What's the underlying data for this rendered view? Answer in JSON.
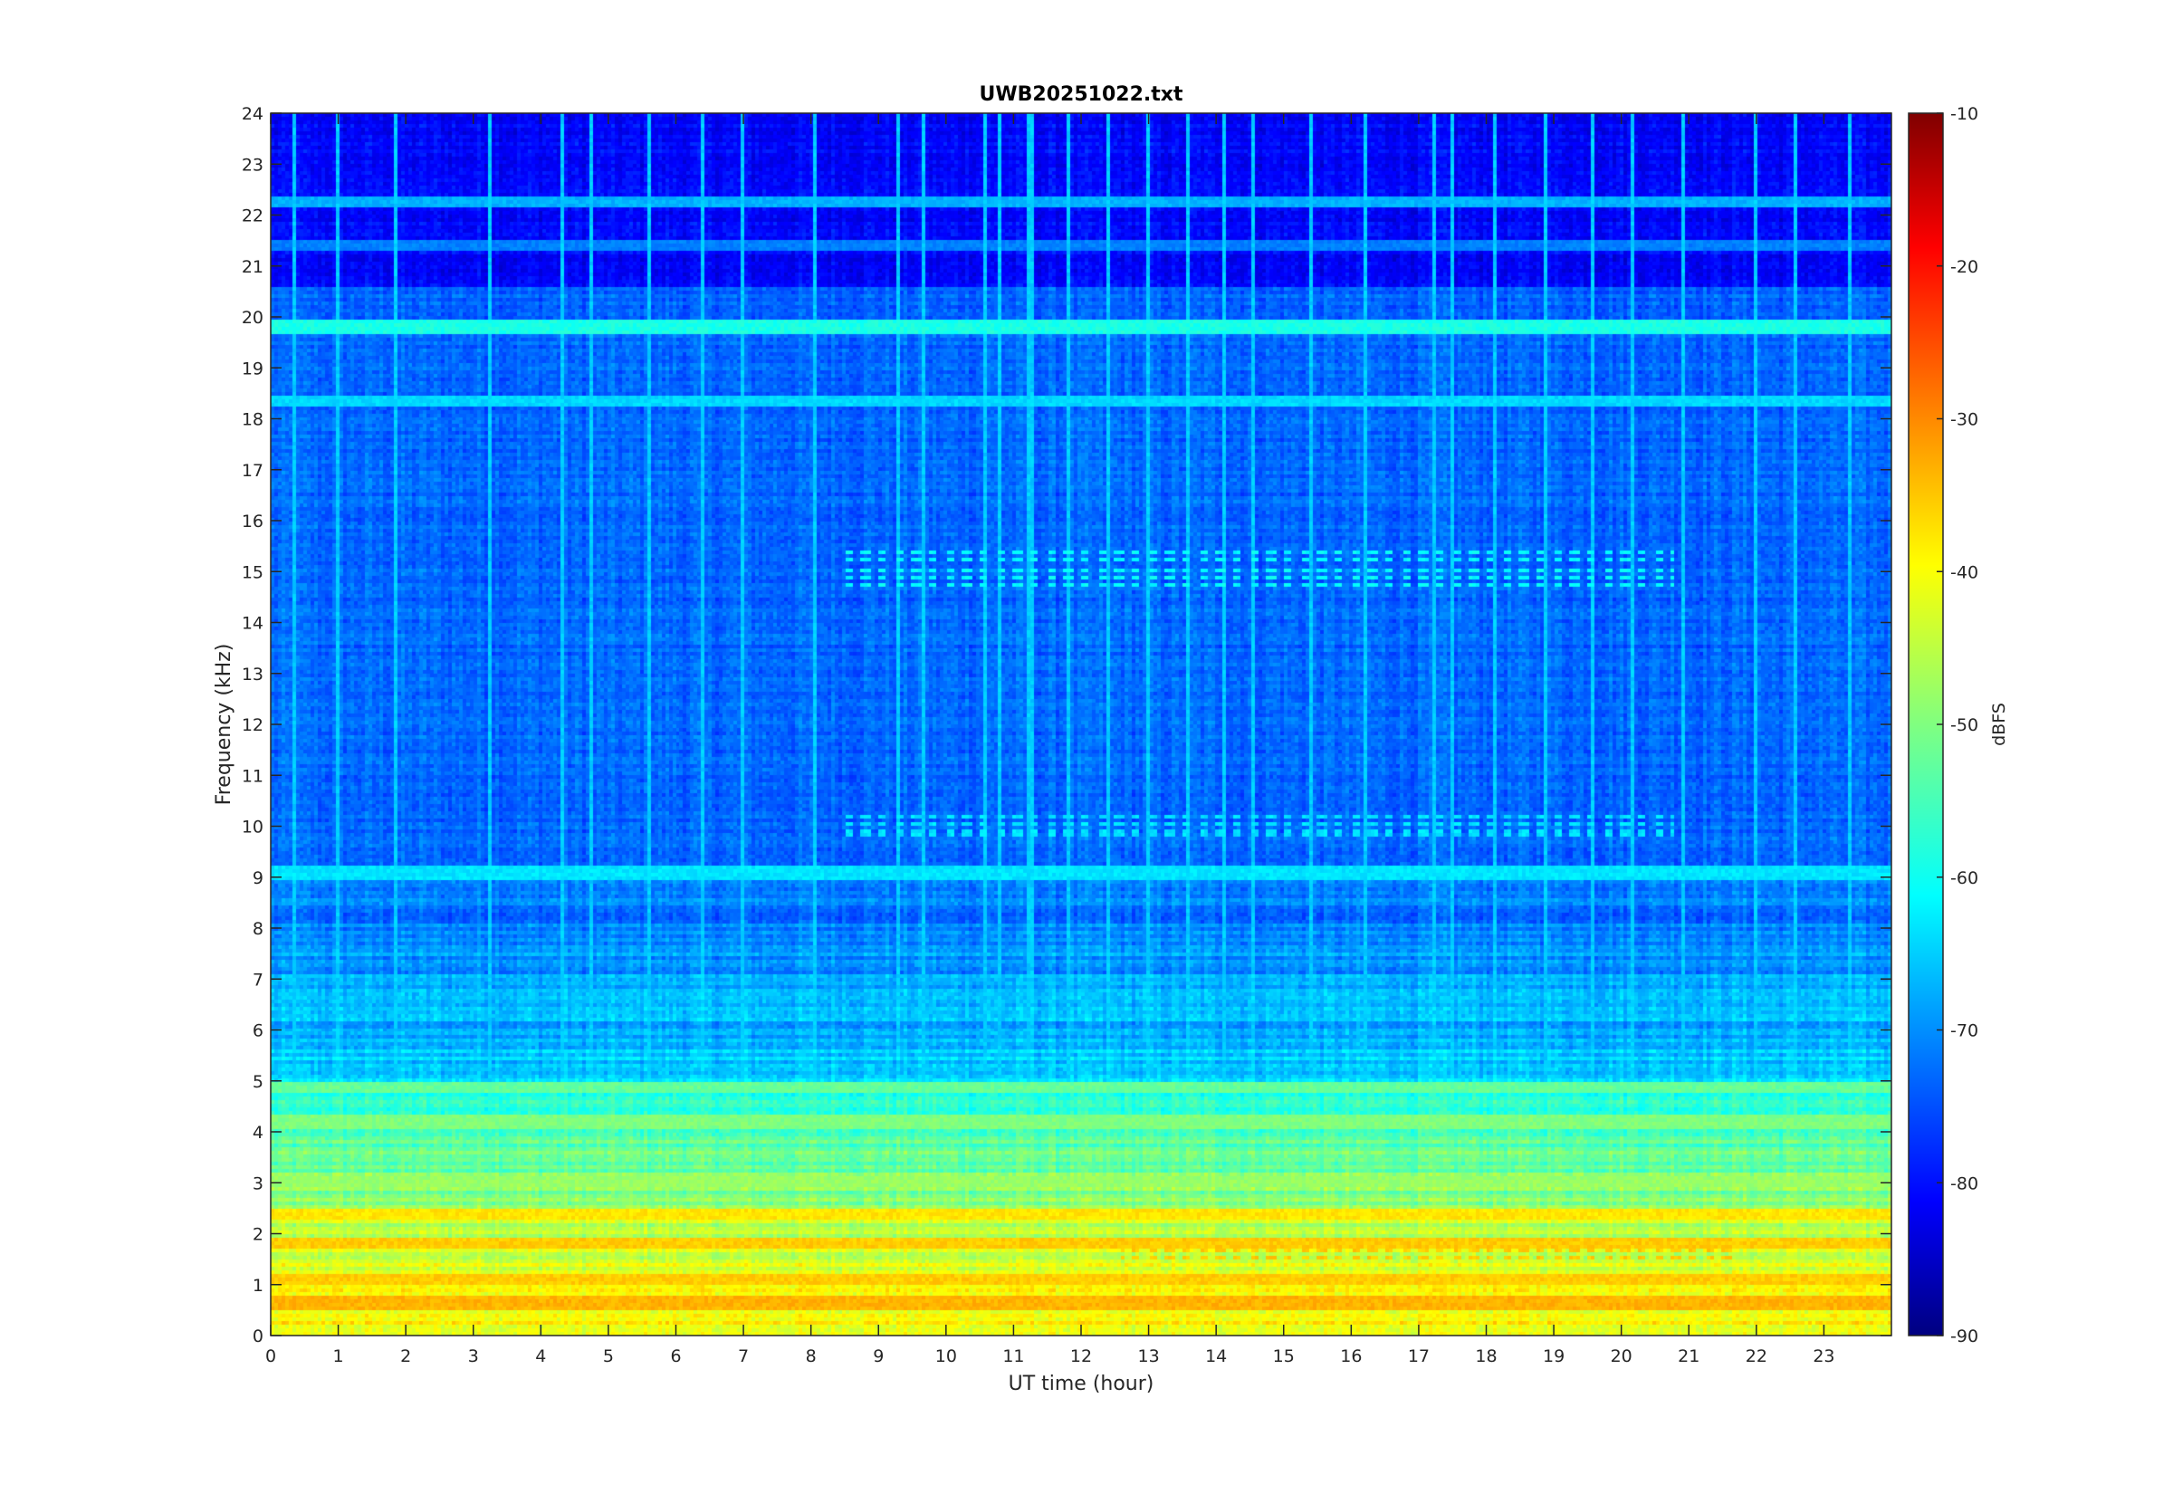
{
  "chart_data": {
    "type": "heatmap",
    "title": "UWB20251022.txt",
    "xlabel": "UT time (hour)",
    "ylabel": "Frequency (kHz)",
    "xlim": [
      0,
      24
    ],
    "ylim": [
      0,
      24
    ],
    "x_ticks": [
      "0",
      "1",
      "2",
      "3",
      "4",
      "5",
      "6",
      "7",
      "8",
      "9",
      "10",
      "11",
      "12",
      "13",
      "14",
      "15",
      "16",
      "17",
      "18",
      "19",
      "20",
      "21",
      "22",
      "23"
    ],
    "y_ticks": [
      "0",
      "1",
      "2",
      "3",
      "4",
      "5",
      "6",
      "7",
      "8",
      "9",
      "10",
      "11",
      "12",
      "13",
      "14",
      "15",
      "16",
      "17",
      "18",
      "19",
      "20",
      "21",
      "22",
      "23",
      "24"
    ],
    "colorbar": {
      "label": "dBFS",
      "range": [
        -90,
        -10
      ],
      "ticks": [
        "-90",
        "-80",
        "-70",
        "-60",
        "-50",
        "-40",
        "-30",
        "-20",
        "-10"
      ],
      "colormap": "jet"
    },
    "features": {
      "background_level_dbfs": -72,
      "upper_band_level_dbfs": -80,
      "horizontal_lines_khz": [
        {
          "freq": 19.8,
          "level": -58
        },
        {
          "freq": 18.35,
          "level": -63
        },
        {
          "freq": 22.25,
          "level": -66
        },
        {
          "freq": 21.4,
          "level": -70
        },
        {
          "freq": 9.1,
          "level": -62
        },
        {
          "freq": 4.85,
          "level": -52
        },
        {
          "freq": 4.2,
          "level": -50
        },
        {
          "freq": 3.0,
          "level": -48
        },
        {
          "freq": 2.4,
          "level": -38
        },
        {
          "freq": 1.8,
          "level": -36
        },
        {
          "freq": 1.1,
          "level": -36
        },
        {
          "freq": 0.65,
          "level": -34
        }
      ],
      "vertical_lines_hour": [
        0.35,
        1.0,
        1.85,
        3.25,
        4.3,
        4.75,
        5.6,
        6.4,
        7.0,
        8.05,
        9.3,
        9.65,
        10.6,
        10.8,
        11.25,
        11.8,
        12.4,
        13.0,
        13.6,
        14.1,
        14.55,
        15.4,
        16.2,
        17.2,
        17.5,
        18.15,
        18.9,
        19.6,
        20.15,
        20.9,
        22.0,
        22.6,
        23.4
      ],
      "pulsed_bands": [
        {
          "freq_range": [
            14.7,
            15.4
          ],
          "time_range": [
            8.5,
            20.8
          ],
          "level": -60
        },
        {
          "freq_range": [
            9.8,
            10.4
          ],
          "time_range": [
            8.5,
            20.8
          ],
          "level": -62
        },
        {
          "freq_range": [
            1.4,
            1.9
          ],
          "time_range": [
            12.6,
            21.7
          ],
          "level": -36
        }
      ]
    }
  }
}
